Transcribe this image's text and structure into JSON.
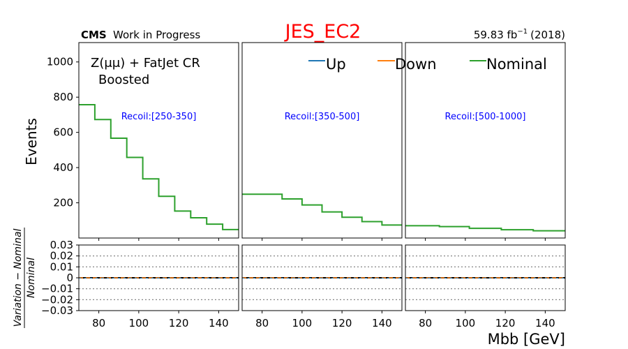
{
  "figure": {
    "title": "JES_EC2",
    "cms_label": "CMS",
    "cms_sub": "Work in Progress",
    "lumi": "59.83 fb",
    "lumi_exp": "−1",
    "lumi_year": "(2018)",
    "region_line1": "Z(μμ) + FatJet CR",
    "region_line2": "Boosted",
    "x_label": "Mbb [GeV]",
    "y_label_main": "Events",
    "y_label_ratio_num": "Variation − Nominal",
    "y_label_ratio_den": "Nominal",
    "colors": {
      "title": "#ff0000",
      "panel_label": "#0000ff",
      "up": "#1f77b4",
      "down": "#ff7f0e",
      "nominal": "#2ca02c"
    }
  },
  "chart_data": {
    "type": "line",
    "legend": [
      "Up",
      "Down",
      "Nominal"
    ],
    "legend_position": "top-right",
    "x_range": [
      70,
      150
    ],
    "y_range_main": [
      0,
      1110
    ],
    "y_ticks_main": [
      200,
      400,
      600,
      800,
      1000
    ],
    "y_range_ratio": [
      -0.03,
      0.03
    ],
    "y_ticks_ratio": [
      0.03,
      0.02,
      0.01,
      0,
      -0.01,
      -0.02,
      -0.03
    ],
    "y_tick_labels_ratio": [
      "0.03",
      "0.02",
      "0.01",
      "0",
      "−0.01",
      "−0.02",
      "−0.03"
    ],
    "ratio_grid": "dotted at ±0.01, ±0.02",
    "x_ticks": [
      80,
      100,
      120,
      140
    ],
    "panels": [
      {
        "label": "Recoil:[250-350]",
        "bin_edges": [
          70,
          78,
          86,
          94,
          102,
          110,
          118,
          126,
          134,
          142,
          150
        ],
        "nominal": [
          757,
          673,
          567,
          458,
          336,
          237,
          153,
          115,
          79,
          48
        ]
      },
      {
        "label": "Recoil:[350-500]",
        "bin_edges": [
          70,
          90,
          110,
          130,
          150
        ],
        "nominal": [
          249,
          222,
          188,
          148,
          118,
          93,
          74
        ],
        "bin_edges_full": [
          70,
          90,
          100,
          110,
          120,
          130,
          140,
          150
        ]
      },
      {
        "label": "Recoil:[500-1000]",
        "bin_edges": [
          70,
          87,
          102,
          118,
          134,
          150
        ],
        "nominal": [
          70,
          65,
          55,
          47,
          41
        ]
      }
    ]
  }
}
